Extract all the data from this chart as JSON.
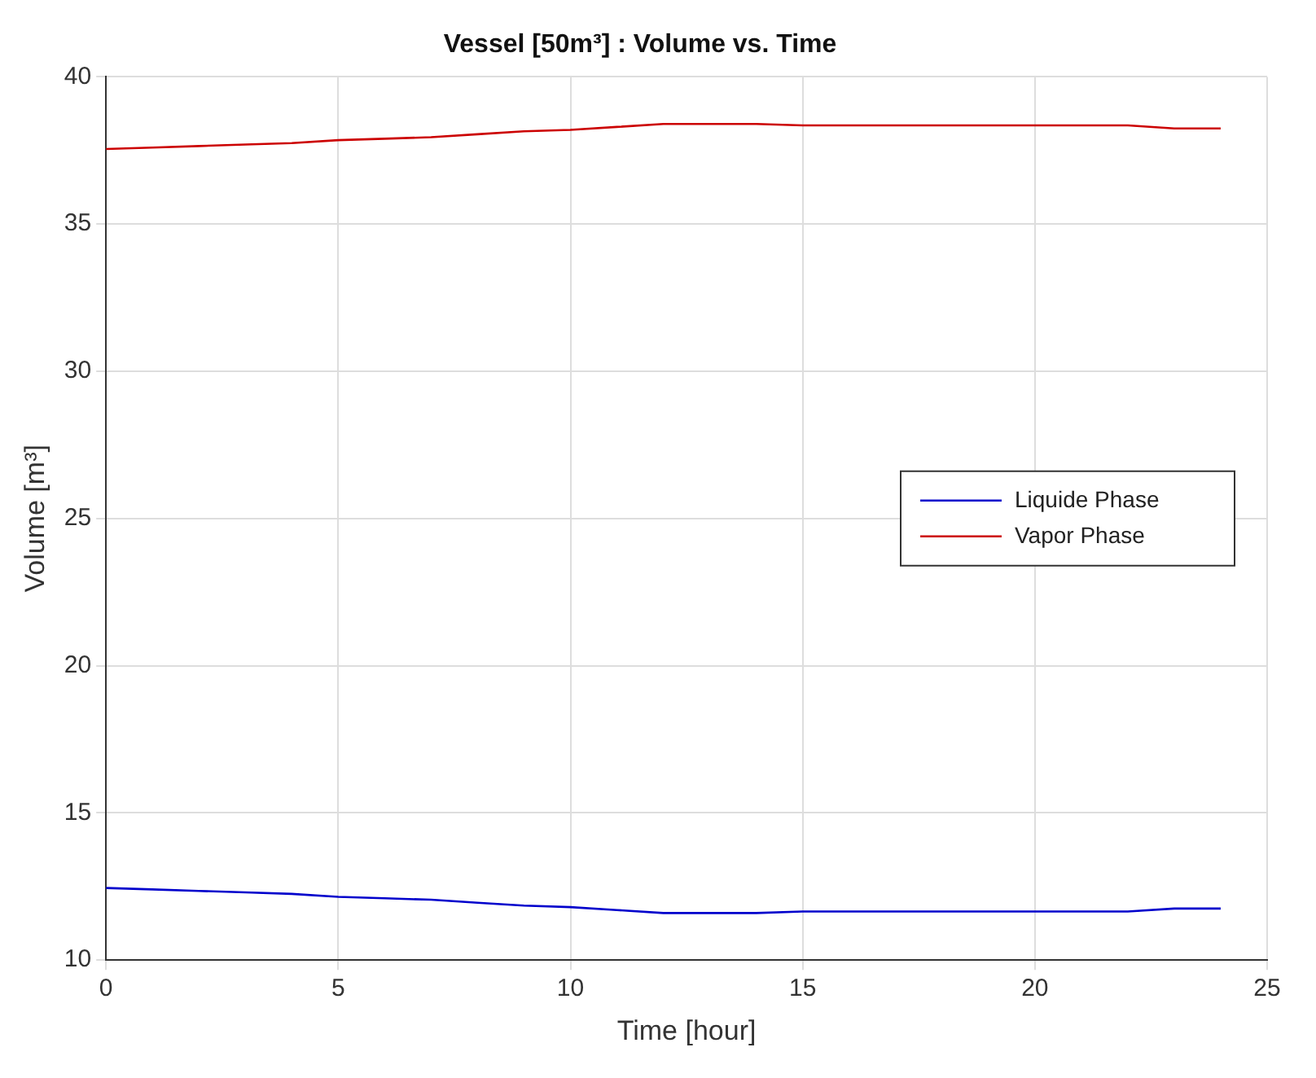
{
  "chart_data": {
    "type": "line",
    "title": "Vessel [50m³] : Volume vs. Time",
    "xlabel": "Time [hour]",
    "ylabel": "Volume [m³]",
    "x": [
      0,
      1,
      2,
      3,
      4,
      5,
      6,
      7,
      8,
      9,
      10,
      11,
      12,
      13,
      14,
      15,
      16,
      17,
      18,
      19,
      20,
      21,
      22,
      23,
      24
    ],
    "series": [
      {
        "name": "Liquide Phase",
        "color": "#0000cc",
        "values": [
          12.45,
          12.4,
          12.35,
          12.3,
          12.25,
          12.15,
          12.1,
          12.05,
          11.95,
          11.85,
          11.8,
          11.7,
          11.6,
          11.6,
          11.6,
          11.65,
          11.65,
          11.65,
          11.65,
          11.65,
          11.65,
          11.65,
          11.65,
          11.75,
          11.75
        ]
      },
      {
        "name": "Vapor Phase",
        "color": "#cc0000",
        "values": [
          37.55,
          37.6,
          37.65,
          37.7,
          37.75,
          37.85,
          37.9,
          37.95,
          38.05,
          38.15,
          38.2,
          38.3,
          38.4,
          38.4,
          38.4,
          38.35,
          38.35,
          38.35,
          38.35,
          38.35,
          38.35,
          38.35,
          38.35,
          38.25,
          38.25
        ]
      }
    ],
    "xlim": [
      0,
      25
    ],
    "xticks": [
      0,
      5,
      10,
      15,
      20,
      25
    ],
    "ylim": [
      10,
      40
    ],
    "yticks": [
      10,
      15,
      20,
      25,
      30,
      35,
      40
    ],
    "grid": true,
    "legend": "right",
    "marker": "none",
    "line_style": "solid"
  }
}
